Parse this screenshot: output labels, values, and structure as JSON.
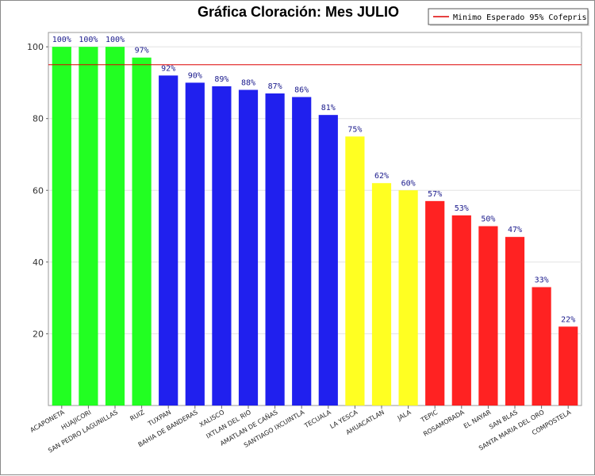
{
  "chart_data": {
    "type": "bar",
    "title": "Gráfica Cloración: Mes JULIO",
    "xlabel": "",
    "ylabel": "",
    "ylim": [
      0,
      104
    ],
    "yticks": [
      20,
      40,
      60,
      80,
      100
    ],
    "grid": true,
    "value_suffix": "%",
    "categories": [
      "ACAPONETA",
      "HUAJICORI",
      "SAN PEDRO LAGUNILLAS",
      "RUIZ",
      "TUXPAN",
      "BAHIA DE BANDERAS",
      "XALISCO",
      "IXTLAN DEL RIO",
      "AMATLAN DE CAÑAS",
      "SANTIAGO IXCUINTLA",
      "TECUALA",
      "LA YESCA",
      "AHUACATLAN",
      "JALA",
      "TEPIC",
      "ROSAMORADA",
      "EL NAYAR",
      "SAN BLAS",
      "SANTA MARIA DEL ORO",
      "COMPOSTELA"
    ],
    "values": [
      100,
      100,
      100,
      97,
      92,
      90,
      89,
      88,
      87,
      86,
      81,
      75,
      62,
      60,
      57,
      53,
      50,
      47,
      33,
      22
    ],
    "bar_colors": [
      "#22ff22",
      "#22ff22",
      "#22ff22",
      "#22ff22",
      "#2020ee",
      "#2020ee",
      "#2020ee",
      "#2020ee",
      "#2020ee",
      "#2020ee",
      "#2020ee",
      "#ffff22",
      "#ffff22",
      "#ffff22",
      "#ff2222",
      "#ff2222",
      "#ff2222",
      "#ff2222",
      "#ff2222",
      "#ff2222"
    ],
    "reference_line": {
      "value": 95,
      "label": "Minimo Esperado 95% Cofepris",
      "color": "#dd0000"
    },
    "legend": {
      "placement": "top-right",
      "entries": [
        "Minimo Esperado 95% Cofepris"
      ]
    }
  }
}
